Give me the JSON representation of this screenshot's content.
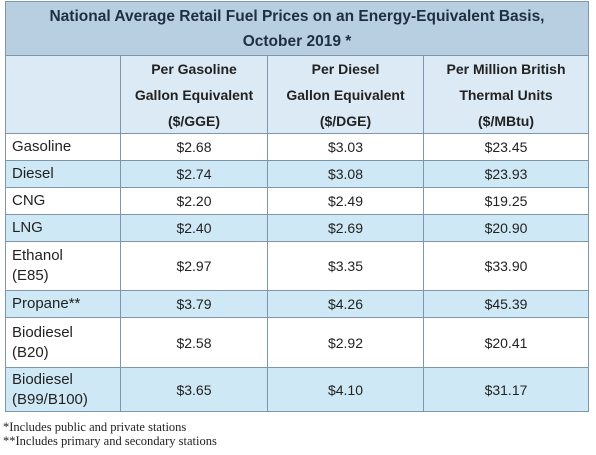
{
  "title": {
    "line1": "National Average Retail Fuel Prices on an Energy-Equivalent Basis,",
    "line2": "October 2019 *"
  },
  "columns": [
    {
      "line1": "",
      "line2": "",
      "line3": ""
    },
    {
      "line1": "Per Gasoline",
      "line2": "Gallon Equivalent",
      "line3": "($/GGE)"
    },
    {
      "line1": "Per Diesel",
      "line2": "Gallon Equivalent",
      "line3": "($/DGE)"
    },
    {
      "line1": "Per Million British",
      "line2": "Thermal Units",
      "line3": "($/MBtu)"
    }
  ],
  "rows": [
    {
      "fuel": "Gasoline",
      "fuel2": "",
      "gge": "$2.68",
      "dge": "$3.03",
      "mbtu": "$23.45"
    },
    {
      "fuel": "Diesel",
      "fuel2": "",
      "gge": "$2.74",
      "dge": "$3.08",
      "mbtu": "$23.93"
    },
    {
      "fuel": "CNG",
      "fuel2": "",
      "gge": "$2.20",
      "dge": "$2.49",
      "mbtu": "$19.25"
    },
    {
      "fuel": "LNG",
      "fuel2": "",
      "gge": "$2.40",
      "dge": "$2.69",
      "mbtu": "$20.90"
    },
    {
      "fuel": "Ethanol",
      "fuel2": "(E85)",
      "gge": "$2.97",
      "dge": "$3.35",
      "mbtu": "$33.90"
    },
    {
      "fuel": "Propane**",
      "fuel2": "",
      "gge": "$3.79",
      "dge": "$4.26",
      "mbtu": "$45.39"
    },
    {
      "fuel": "Biodiesel",
      "fuel2": "(B20)",
      "gge": "$2.58",
      "dge": "$2.92",
      "mbtu": "$20.41"
    },
    {
      "fuel": "Biodiesel",
      "fuel2": "(B99/B100)",
      "gge": "$3.65",
      "dge": "$4.10",
      "mbtu": "$31.17"
    }
  ],
  "footnotes": {
    "note1": "*Includes public and private stations",
    "note2": "**Includes primary and secondary stations"
  },
  "colors": {
    "title_band": "#b8cfe2",
    "header_band": "#dbeaf5",
    "alt_row": "#cfe8f6",
    "border": "#7d96ab"
  }
}
